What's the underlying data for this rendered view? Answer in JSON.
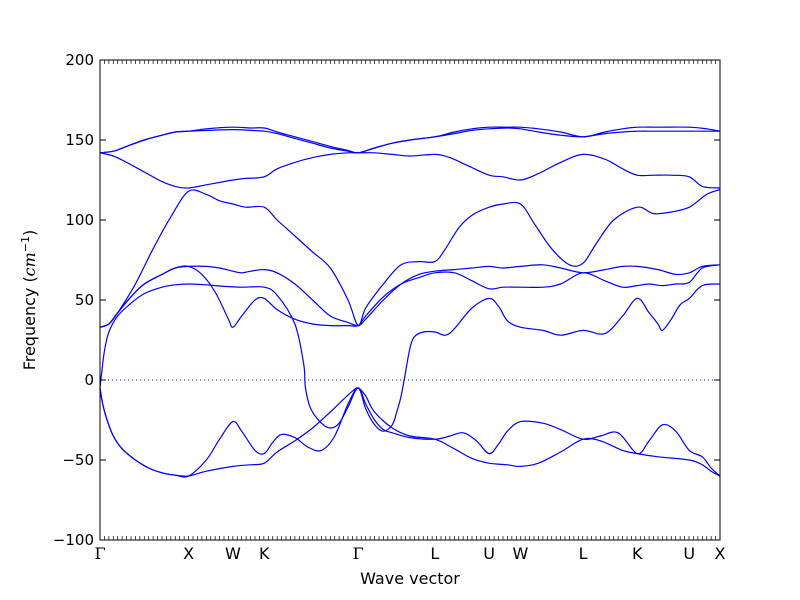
{
  "chart_data": {
    "type": "line",
    "title": "",
    "xlabel": "Wave vector",
    "ylabel": {
      "text": "Frequency (",
      "unit": "cm",
      "exp": "−1",
      "close": ")"
    },
    "ylim": [
      -100,
      200
    ],
    "yticks": [
      -100,
      -50,
      0,
      50,
      100,
      150,
      200
    ],
    "grid": false,
    "legend": "none",
    "zero_line": {
      "y": 0,
      "style": "dotted"
    },
    "line_color": "#0000ff",
    "x_labels": [
      {
        "label": "Γ",
        "x": 0.0
      },
      {
        "label": "X",
        "x": 1.0
      },
      {
        "label": "W",
        "x": 1.5
      },
      {
        "label": "K",
        "x": 1.854
      },
      {
        "label": "Γ",
        "x": 2.915
      },
      {
        "label": "L",
        "x": 3.781
      },
      {
        "label": "U",
        "x": 4.393
      },
      {
        "label": "W",
        "x": 4.747
      },
      {
        "label": "L",
        "x": 5.454
      },
      {
        "label": "K",
        "x": 6.066
      },
      {
        "label": "U",
        "x": 6.653
      },
      {
        "label": "X",
        "x": 7.0
      }
    ],
    "xlim": [
      0,
      7.0
    ],
    "series": [
      {
        "x": [
          0,
          0.03,
          0.08,
          0.15,
          0.25,
          0.4,
          0.55,
          0.7,
          0.85,
          1.0,
          1.2,
          1.5,
          1.7,
          1.854,
          2.0,
          2.2,
          2.4,
          2.6,
          2.75,
          2.85,
          2.915,
          3.0,
          3.1,
          3.3,
          3.5,
          3.781,
          4.0,
          4.2,
          4.393,
          4.6,
          4.747,
          4.95,
          5.2,
          5.454,
          5.65,
          5.9,
          6.066,
          6.3,
          6.653,
          6.8,
          6.9,
          7.0
        ],
        "y": [
          -5,
          -15,
          -25,
          -35,
          -43,
          -50,
          -55,
          -58,
          -59.5,
          -60,
          -57,
          -54,
          -53,
          -52,
          -45,
          -38,
          -30,
          -20,
          -12,
          -7,
          -5,
          -10,
          -20,
          -30,
          -35,
          -37,
          -43,
          -49,
          -52,
          -53,
          -54,
          -52,
          -45,
          -37,
          -38,
          -44,
          -46,
          -48,
          -50,
          -53,
          -57,
          -60
        ]
      },
      {
        "x": [
          0,
          0.03,
          0.08,
          0.15,
          0.25,
          0.4,
          0.55,
          0.7,
          0.85,
          1.0,
          1.2,
          1.35,
          1.5,
          1.6,
          1.75,
          1.854,
          1.95,
          2.05,
          2.2,
          2.35,
          2.5,
          2.65,
          2.8,
          2.915,
          3.0,
          3.1,
          3.2,
          3.3,
          3.5,
          3.781,
          3.95,
          4.1,
          4.25,
          4.393,
          4.5,
          4.6,
          4.747,
          5.0,
          5.2,
          5.454,
          5.65,
          5.85,
          6.066,
          6.2,
          6.35,
          6.5,
          6.653,
          6.8,
          6.9,
          7.0
        ],
        "y": [
          -5,
          -15,
          -25,
          -35,
          -43,
          -50,
          -55,
          -58,
          -59.5,
          -60,
          -50,
          -37,
          -26,
          -32,
          -44,
          -46,
          -39,
          -34,
          -36,
          -42,
          -44,
          -35,
          -15,
          -5,
          -15,
          -25,
          -31,
          -33,
          -36,
          -37,
          -35,
          -33,
          -38,
          -46,
          -40,
          -32,
          -26,
          -27,
          -31,
          -37,
          -35,
          -33,
          -46,
          -38,
          -28,
          -32,
          -44,
          -48,
          -55,
          -60
        ]
      },
      {
        "x": [
          0,
          0.02,
          0.05,
          0.1,
          0.2,
          0.35,
          0.5,
          0.7,
          0.85,
          1.0,
          1.2,
          1.4,
          1.6,
          1.854,
          2.0,
          2.2,
          2.3,
          2.32,
          2.38,
          2.5,
          2.6,
          2.7,
          2.8,
          2.915,
          3.0,
          3.1,
          3.2,
          3.3,
          3.35,
          3.4,
          3.45,
          3.5,
          3.55,
          3.65,
          3.781,
          3.9,
          4.0,
          4.2,
          4.393,
          4.5,
          4.6,
          4.747,
          5.0,
          5.2,
          5.454,
          5.7,
          5.9,
          6.066,
          6.2,
          6.3,
          6.35,
          6.45,
          6.55,
          6.653,
          6.8,
          7.0
        ],
        "y": [
          -5,
          5,
          18,
          30,
          40,
          48,
          54,
          58,
          59.5,
          60,
          59.5,
          58.5,
          58,
          58,
          53,
          35,
          10,
          -5,
          -18,
          -27,
          -30,
          -27,
          -17,
          -5,
          -18,
          -28,
          -32,
          -28,
          -20,
          -10,
          5,
          20,
          27,
          30,
          30,
          28,
          32,
          45,
          51,
          46,
          37,
          33,
          31,
          28,
          31,
          29,
          40,
          51,
          42,
          35,
          31,
          38,
          47,
          51,
          59,
          60
        ]
      },
      {
        "x": [
          0,
          0.1,
          0.2,
          0.35,
          0.5,
          0.7,
          0.85,
          1.0,
          1.2,
          1.35,
          1.5,
          1.6,
          1.7,
          1.854,
          2.0,
          2.2,
          2.4,
          2.6,
          2.8,
          2.915,
          3.0,
          3.2,
          3.4,
          3.6,
          3.781,
          4.0,
          4.2,
          4.393,
          4.55,
          4.747,
          5.0,
          5.2,
          5.454,
          5.7,
          5.9,
          6.066,
          6.3,
          6.5,
          6.653,
          6.8,
          7.0
        ],
        "y": [
          33,
          35,
          42,
          52,
          60,
          66,
          70,
          71,
          71,
          70,
          68,
          67,
          68,
          69,
          67,
          60,
          50,
          40,
          36,
          34,
          38,
          50,
          60,
          66,
          68,
          69,
          70,
          71,
          70,
          71,
          72,
          70,
          67,
          69,
          71,
          71,
          69,
          66,
          67,
          71,
          72
        ]
      },
      {
        "x": [
          0,
          0.1,
          0.2,
          0.35,
          0.5,
          0.7,
          0.85,
          1.0,
          1.15,
          1.3,
          1.45,
          1.5,
          1.6,
          1.75,
          1.854,
          2.0,
          2.2,
          2.4,
          2.6,
          2.8,
          2.915,
          3.0,
          3.2,
          3.4,
          3.6,
          3.781,
          4.0,
          4.2,
          4.393,
          4.55,
          4.747,
          5.0,
          5.2,
          5.454,
          5.7,
          5.9,
          6.066,
          6.2,
          6.35,
          6.5,
          6.653,
          6.8,
          7.0
        ],
        "y": [
          33,
          35,
          42,
          52,
          60,
          66,
          70,
          71,
          66,
          55,
          38,
          33,
          40,
          50,
          51,
          44,
          38,
          35,
          34,
          34,
          34,
          40,
          52,
          60,
          64,
          67,
          67,
          62,
          57,
          58,
          58,
          58,
          60,
          67,
          62,
          58,
          59,
          60,
          59,
          60,
          61,
          70,
          72
        ]
      },
      {
        "x": [
          0,
          0.1,
          0.2,
          0.4,
          0.6,
          0.8,
          1.0,
          1.2,
          1.35,
          1.5,
          1.65,
          1.854,
          2.0,
          2.2,
          2.4,
          2.6,
          2.8,
          2.915,
          3.0,
          3.2,
          3.4,
          3.6,
          3.781,
          3.9,
          4.05,
          4.2,
          4.393,
          4.55,
          4.747,
          4.9,
          5.1,
          5.3,
          5.454,
          5.6,
          5.8,
          6.066,
          6.25,
          6.45,
          6.653,
          6.85,
          7.0
        ],
        "y": [
          33,
          35,
          42,
          60,
          82,
          102,
          118,
          116,
          112,
          110,
          108,
          108,
          100,
          90,
          80,
          70,
          50,
          34,
          45,
          60,
          72,
          74,
          74,
          82,
          95,
          103,
          108,
          110,
          110,
          98,
          82,
          72,
          73,
          85,
          100,
          108,
          104,
          105,
          108,
          116,
          119
        ]
      },
      {
        "x": [
          0,
          0.15,
          0.3,
          0.5,
          0.7,
          0.85,
          1.0,
          1.2,
          1.4,
          1.5,
          1.65,
          1.854,
          2.0,
          2.2,
          2.4,
          2.6,
          2.8,
          2.915,
          3.1,
          3.3,
          3.5,
          3.781,
          3.95,
          4.15,
          4.393,
          4.55,
          4.747,
          4.95,
          5.2,
          5.454,
          5.7,
          5.9,
          6.066,
          6.25,
          6.45,
          6.653,
          6.8,
          7.0
        ],
        "y": [
          142,
          140,
          136,
          130,
          124,
          121,
          120,
          122,
          124,
          125,
          126,
          127,
          132,
          136,
          139,
          141,
          142,
          142,
          142,
          141,
          140,
          141,
          139,
          134,
          128,
          127,
          125,
          129,
          136,
          141,
          138,
          132,
          128,
          128,
          128,
          127,
          121,
          120
        ]
      },
      {
        "x": [
          0,
          0.15,
          0.3,
          0.5,
          0.7,
          0.85,
          1.0,
          1.2,
          1.5,
          1.7,
          1.854,
          2.0,
          2.2,
          2.4,
          2.6,
          2.8,
          2.915,
          3.1,
          3.3,
          3.5,
          3.781,
          4.0,
          4.2,
          4.393,
          4.6,
          4.747,
          4.95,
          5.2,
          5.454,
          5.7,
          5.9,
          6.066,
          6.3,
          6.653,
          6.85,
          7.0
        ],
        "y": [
          142,
          143,
          146,
          150,
          153,
          155,
          155.5,
          156,
          156.5,
          156,
          155.5,
          154,
          151,
          148,
          145,
          143,
          142,
          145,
          148,
          150,
          152,
          154,
          156,
          157,
          157.5,
          157,
          155,
          153,
          152,
          154,
          155,
          155.5,
          155.5,
          155.5,
          155.5,
          155.5
        ]
      },
      {
        "x": [
          0,
          0.15,
          0.3,
          0.5,
          0.7,
          0.85,
          1.0,
          1.2,
          1.5,
          1.7,
          1.854,
          2.0,
          2.2,
          2.4,
          2.6,
          2.8,
          2.915,
          3.1,
          3.3,
          3.5,
          3.781,
          4.0,
          4.2,
          4.393,
          4.6,
          4.747,
          4.95,
          5.2,
          5.454,
          5.7,
          5.9,
          6.066,
          6.3,
          6.653,
          6.85,
          7.0
        ],
        "y": [
          142,
          143,
          146,
          150,
          153,
          155,
          155.5,
          157,
          158,
          157.5,
          157.5,
          155,
          152,
          149,
          146,
          143.5,
          142,
          145,
          148,
          150,
          152,
          155,
          157,
          158,
          158,
          158,
          157,
          155,
          152,
          155,
          157,
          158,
          158,
          158,
          157,
          155.5
        ]
      }
    ]
  }
}
